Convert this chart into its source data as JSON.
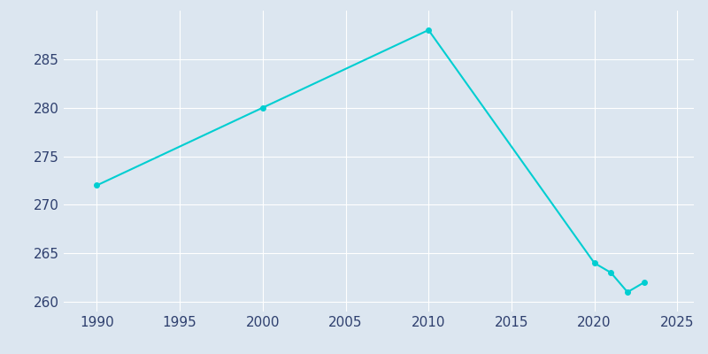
{
  "years": [
    1990,
    2000,
    2010,
    2020,
    2021,
    2022,
    2023
  ],
  "population": [
    272,
    280,
    288,
    264,
    263,
    261,
    262
  ],
  "line_color": "#00CED1",
  "marker": "o",
  "marker_size": 4,
  "background_color": "#dce6f0",
  "plot_bg_color": "#dce6f0",
  "grid_color": "#ffffff",
  "xlabel": "",
  "ylabel": "",
  "xlim": [
    1988,
    2026
  ],
  "ylim": [
    259,
    290
  ],
  "xticks": [
    1990,
    1995,
    2000,
    2005,
    2010,
    2015,
    2020,
    2025
  ],
  "yticks": [
    260,
    265,
    270,
    275,
    280,
    285
  ]
}
